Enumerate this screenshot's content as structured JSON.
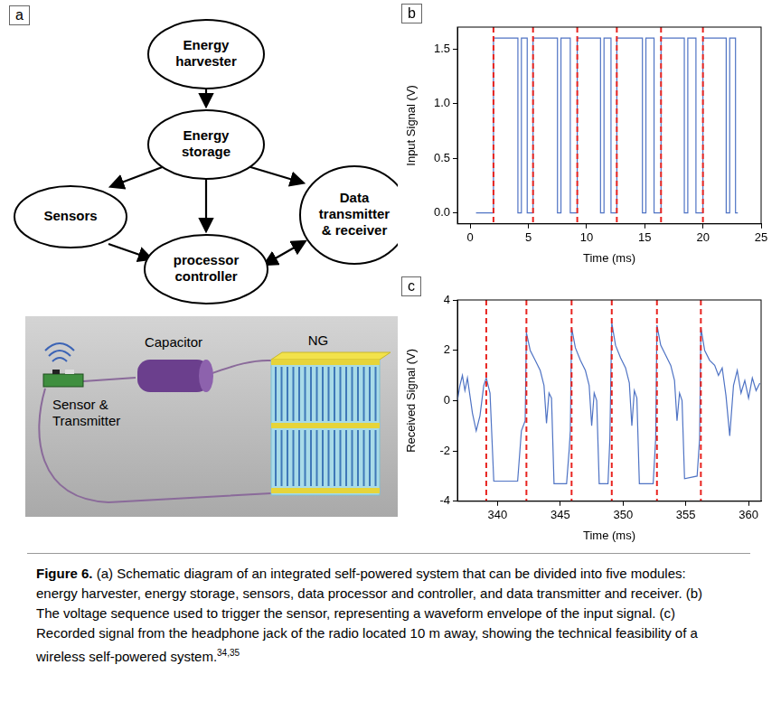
{
  "letters": [
    "a",
    "b",
    "c"
  ],
  "panel_a": {
    "modules": [
      "Energy harvester",
      "Energy storage",
      "Sensors",
      "processor controller",
      "Data transmitter & receiver"
    ],
    "illustration": [
      "Capacitor",
      "NG",
      "Sensor & Transmitter"
    ]
  },
  "chart_data": [
    {
      "type": "line",
      "x_label": "Time (ms)",
      "y_label": "Input Signal (V)",
      "color": "#4f73c4",
      "grid": false,
      "xlim": [
        -1.1,
        25
      ],
      "xticks": [
        0,
        5,
        10,
        15,
        20,
        25
      ],
      "ylim": [
        -0.1,
        1.7
      ],
      "yticks": [
        {
          "value": 0,
          "label": "0.0"
        },
        {
          "value": 0.5,
          "label": "0.5"
        },
        {
          "value": 1,
          "label": "1.0"
        },
        {
          "value": 1.5,
          "label": "1.5"
        }
      ],
      "vlines": [
        2.0,
        5.4,
        9.2,
        12.6,
        16.4,
        20.0
      ],
      "x": [
        0.5,
        2.0,
        2.0,
        4.1,
        4.1,
        4.4,
        4.4,
        4.9,
        4.9,
        5.4,
        5.4,
        7.5,
        7.5,
        7.8,
        7.8,
        8.6,
        8.6,
        9.2,
        9.2,
        11.2,
        11.2,
        11.5,
        11.5,
        12.1,
        12.1,
        12.6,
        12.6,
        14.8,
        14.8,
        15.1,
        15.1,
        15.8,
        15.8,
        16.4,
        16.4,
        18.4,
        18.4,
        18.7,
        18.7,
        19.4,
        19.4,
        20.0,
        20.0,
        22.0,
        22.0,
        22.3,
        22.3,
        22.8,
        22.8,
        23.0
      ],
      "values": [
        0,
        0,
        1.6,
        1.6,
        0,
        0,
        1.6,
        1.6,
        0,
        0,
        1.6,
        1.6,
        0,
        0,
        1.6,
        1.6,
        0,
        0,
        1.6,
        1.6,
        0,
        0,
        1.6,
        1.6,
        0,
        0,
        1.6,
        1.6,
        0,
        0,
        1.6,
        1.6,
        0,
        0,
        1.6,
        1.6,
        0,
        0,
        1.6,
        1.6,
        0,
        0,
        1.6,
        1.6,
        0,
        0,
        1.6,
        1.6,
        0,
        0
      ]
    },
    {
      "type": "line",
      "x_label": "Time (ms)",
      "y_label": "Received Signal (V)",
      "color": "#4f73c4",
      "grid": false,
      "xlim": [
        336.8,
        361
      ],
      "xticks": [
        340,
        345,
        350,
        355,
        360
      ],
      "ylim": [
        -4,
        4
      ],
      "yticks": [
        -4,
        -2,
        0,
        2,
        4
      ],
      "vlines": [
        339.1,
        342.3,
        345.9,
        349.1,
        352.7,
        356.2
      ],
      "x": [
        336.8,
        337.0,
        337.2,
        337.4,
        337.6,
        337.8,
        338.0,
        338.3,
        338.6,
        338.9,
        339.1,
        339.4,
        339.7,
        341.6,
        341.9,
        342.2,
        342.3,
        342.6,
        343.0,
        343.4,
        343.7,
        343.9,
        344.1,
        344.3,
        344.5,
        345.5,
        345.7,
        345.8,
        345.9,
        346.2,
        346.6,
        347.0,
        347.3,
        347.5,
        347.7,
        347.9,
        348.1,
        348.8,
        348.95,
        349.1,
        349.4,
        349.8,
        350.2,
        350.5,
        350.7,
        350.9,
        351.1,
        351.3,
        352.4,
        352.6,
        352.7,
        353.0,
        353.4,
        353.8,
        354.1,
        354.3,
        354.5,
        354.7,
        354.9,
        355.9,
        356.1,
        356.2,
        356.5,
        356.9,
        357.3,
        357.6,
        357.9,
        358.2,
        358.5,
        358.8,
        359.1,
        359.4,
        359.7,
        360.0,
        360.3,
        360.6,
        360.9
      ],
      "values": [
        0,
        0.6,
        1.0,
        0.4,
        0.9,
        0.2,
        -0.5,
        -1.2,
        -0.6,
        0.6,
        0.9,
        0.3,
        -3.2,
        -3.2,
        -1.2,
        -0.8,
        2.7,
        2.0,
        1.6,
        1.2,
        0.6,
        -0.9,
        0.3,
        0.1,
        -3.3,
        -3.3,
        -2.0,
        -1.2,
        2.9,
        2.1,
        1.6,
        1.2,
        0.6,
        -1.0,
        0.3,
        0.0,
        -3.3,
        -3.3,
        -1.5,
        3.1,
        2.2,
        1.7,
        1.3,
        0.7,
        -1.0,
        0.4,
        0.1,
        -3.3,
        -3.3,
        -1.5,
        3.0,
        2.2,
        1.8,
        1.4,
        0.8,
        -0.8,
        0.3,
        0.0,
        -3.1,
        -3.0,
        -1.5,
        2.9,
        2.0,
        1.6,
        1.4,
        1.0,
        1.3,
        0.2,
        -1.4,
        0.6,
        1.2,
        0.3,
        0.8,
        0.1,
        0.9,
        0.4,
        0.7
      ]
    }
  ],
  "caption": {
    "label": "Figure 6.",
    "text": "(a) Schematic diagram of an integrated self-powered system that can be divided into five modules: energy harvester, energy storage, sensors, data processor and controller, and data transmitter and receiver. (b) The voltage sequence used to trigger the sensor, representing a waveform envelope of the input signal. (c) Recorded signal from the headphone jack of the radio located 10 m away, showing the technical feasibility of a wireless self-powered system.",
    "refs": "34,35"
  }
}
